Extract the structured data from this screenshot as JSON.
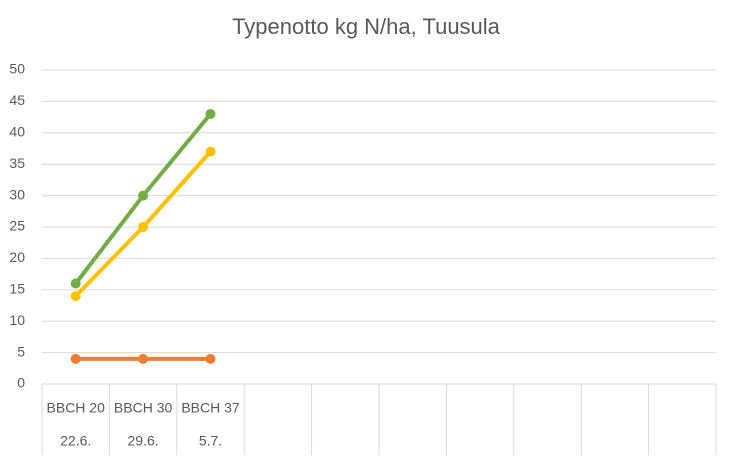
{
  "chart_data": {
    "type": "line",
    "title": "Typenotto kg N/ha, Tuusula",
    "categories": [
      "BBCH 20",
      "BBCH 30",
      "BBCH 37",
      null,
      null,
      null,
      null,
      null,
      null,
      null
    ],
    "category_dates": [
      "22.6.",
      "29.6.",
      "5.7.",
      null,
      null,
      null,
      null,
      null,
      null,
      null
    ],
    "series": [
      {
        "color": "#70ad47",
        "values": [
          16,
          30,
          43,
          null,
          null,
          null,
          null,
          null,
          null,
          null
        ]
      },
      {
        "color": "#ffc000",
        "values": [
          14,
          25,
          37,
          null,
          null,
          null,
          null,
          null,
          null,
          null
        ]
      },
      {
        "color": "#ed7d31",
        "values": [
          4,
          4,
          4,
          null,
          null,
          null,
          null,
          null,
          null,
          null
        ]
      }
    ],
    "ylim": [
      0,
      50
    ],
    "yticks": [
      0,
      5,
      10,
      15,
      20,
      25,
      30,
      35,
      40,
      45,
      50
    ],
    "grid": true
  }
}
